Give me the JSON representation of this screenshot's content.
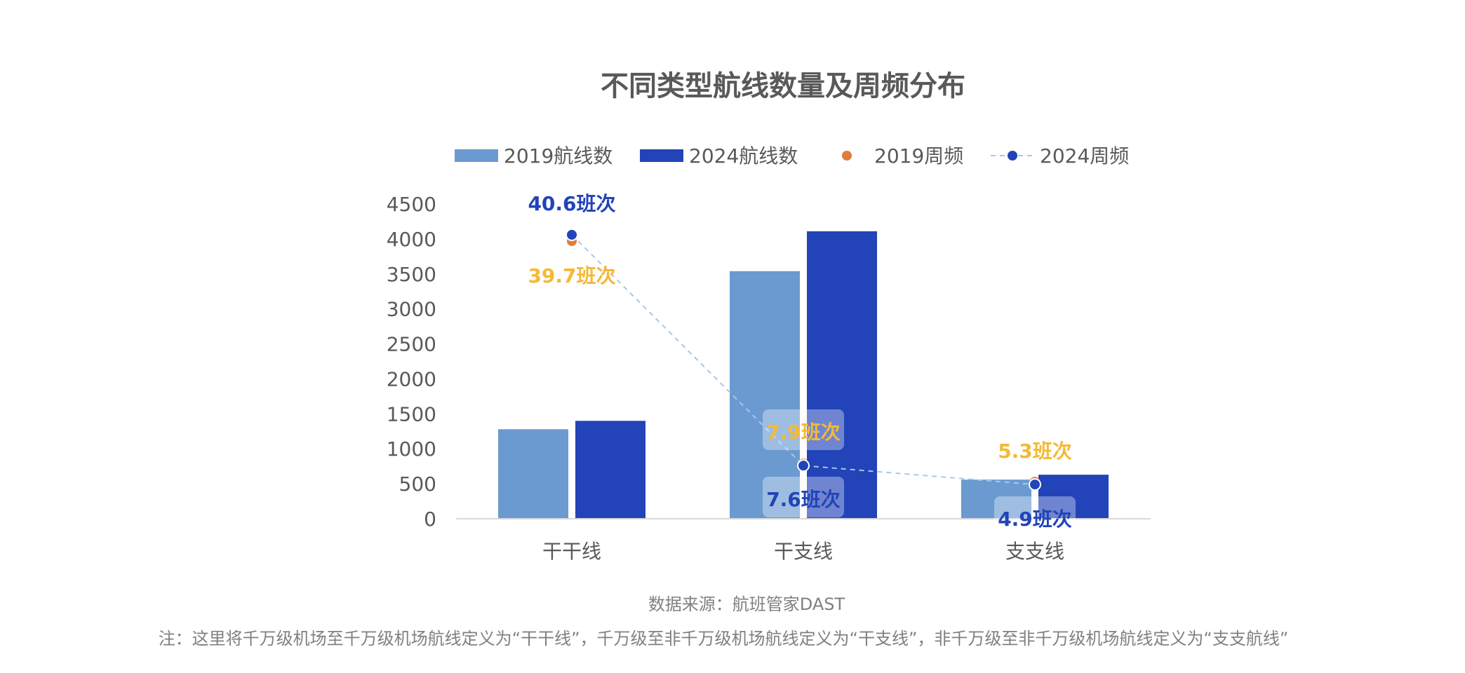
{
  "chart_data": {
    "type": "bar",
    "title": "不同类型航线数量及周频分布",
    "categories": [
      "干干线",
      "干支线",
      "支支线"
    ],
    "ylim": [
      0,
      4500
    ],
    "y_ticks": [
      "0",
      "500",
      "1000",
      "1500",
      "2000",
      "2500",
      "3000",
      "3500",
      "4000",
      "4500"
    ],
    "grid": false,
    "legend_position": "top",
    "bar_series": [
      {
        "name": "2019航线数",
        "color": "#6A9AD0",
        "values": [
          1280,
          3540,
          560
        ]
      },
      {
        "name": "2024航线数",
        "color": "#2244B8",
        "values": [
          1400,
          4110,
          630
        ]
      }
    ],
    "line_series": [
      {
        "name": "2019周频",
        "color": "#E07C3C",
        "values": [
          39.7,
          7.9,
          5.3
        ],
        "labels": [
          "39.7班次",
          "7.9班次",
          "5.3班次"
        ],
        "label_color": "#F5B935"
      },
      {
        "name": "2024周频",
        "color": "#2244B8",
        "values": [
          40.6,
          7.6,
          4.9
        ],
        "labels": [
          "40.6班次",
          "7.6班次",
          "4.9班次"
        ],
        "label_color": "#2244B8"
      }
    ],
    "line_scale_note": "周频 plotted on bar axis ×100",
    "source": "数据来源：航班管家DAST",
    "note": "注：这里将千万级机场至千万级机场航线定义为“干干线”，千万级至非千万级机场航线定义为“干支线”，非千万级至非千万级机场航线定义为“支支航线”"
  }
}
